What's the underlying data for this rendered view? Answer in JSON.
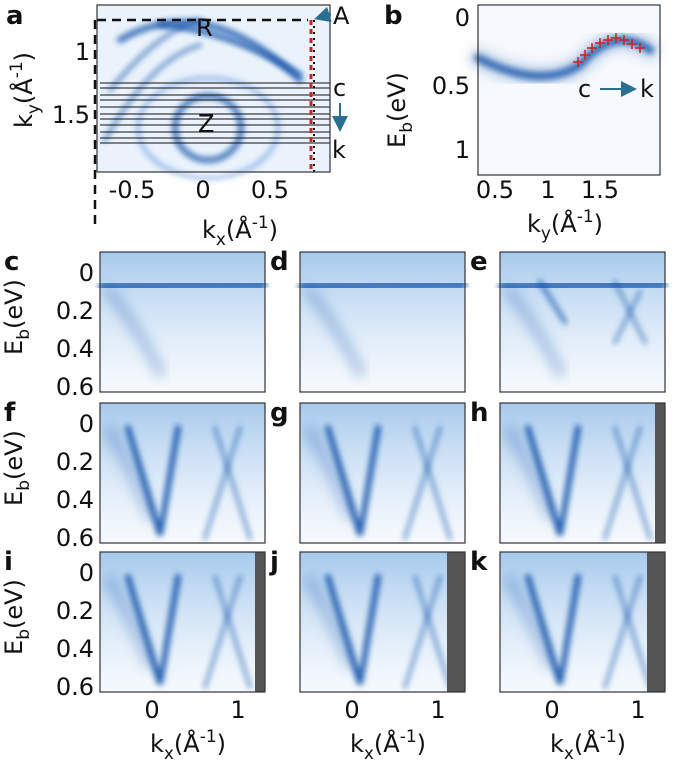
{
  "panel_a": {
    "label": "a",
    "y_label": {
      "base": "k",
      "sub": "y",
      "open": "(Å",
      "sup": "-1",
      "close": ")"
    },
    "x_label": {
      "base": "k",
      "sub": "x",
      "open": "(Å",
      "sup": "-1",
      "close": ")"
    },
    "yticks": [
      "1",
      "1.5"
    ],
    "xticks": [
      "-0.5",
      "0",
      "0.5"
    ],
    "markers": {
      "R": "R",
      "A": "A",
      "Z": "Z",
      "c": "c",
      "k": "k"
    }
  },
  "panel_b": {
    "label": "b",
    "y_label": {
      "base": "E",
      "sub": "b",
      "open": "(eV)"
    },
    "x_label": {
      "base": "k",
      "sub": "y",
      "open": "(Å",
      "sup": "-1",
      "close": ")"
    },
    "yticks": [
      "0",
      "0.5",
      "1"
    ],
    "xticks": [
      "0.5",
      "1",
      "1.5"
    ],
    "annotation": {
      "from": "c",
      "to": "k"
    }
  },
  "grid": {
    "panels": [
      "c",
      "d",
      "e",
      "f",
      "g",
      "h",
      "i",
      "j",
      "k"
    ],
    "y_label": {
      "base": "E",
      "sub": "b",
      "open": "(eV)"
    },
    "x_label": {
      "base": "k",
      "sub": "x",
      "open": "(Å",
      "sup": "-1",
      "close": ")"
    },
    "yticks": [
      "0",
      "0.2",
      "0.4",
      "0.6"
    ],
    "xticks": [
      "0",
      "1"
    ]
  }
}
